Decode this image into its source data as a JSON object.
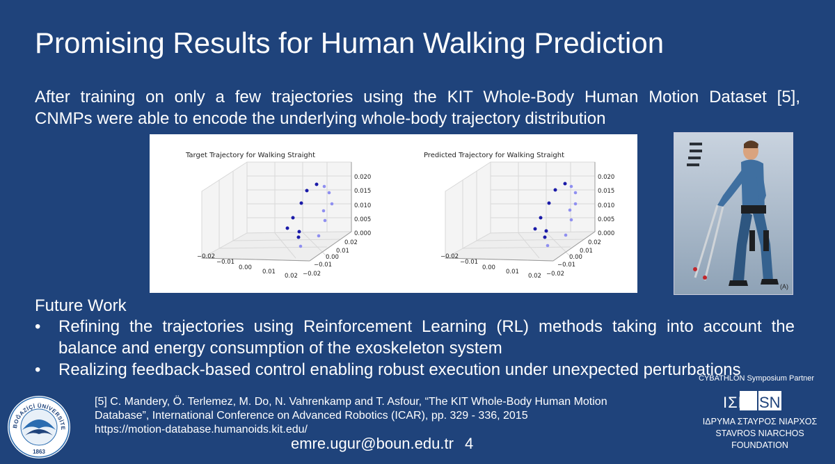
{
  "slide": {
    "title": "Promising Results for Human Walking Prediction",
    "intro_line1": "After training on only a few trajectories using the KIT Whole-Body Human Motion Dataset [5],",
    "intro_line2": "CNMPs were able to encode the underlying whole-body trajectory distribution",
    "future_work_title": "Future Work",
    "bullets": [
      "Refining the trajectories using Reinforcement Learning (RL) methods taking into account the balance and energy consumption of the exoskeleton system",
      "Realizing feedback-based control enabling robust execution under unexpected perturbations"
    ],
    "bullet_glyph": "•",
    "reference_lines": [
      "[5] C. Mandery, Ö. Terlemez, M. Do, N. Vahrenkamp and T. Asfour, “The KIT Whole-Body Human Motion",
      "Database”, International Conference on Advanced Robotics (ICAR), pp. 329 - 336, 2015",
      "https://motion-database.humanoids.kit.edu/"
    ],
    "footer_email": "emre.ugur@boun.edu.tr",
    "page_number": "4",
    "partner_caption": "CYBATHLON Symposium Partner",
    "snf_mark_left": "ΙΣΝ",
    "snf_mark_right": "SNF",
    "snf_greek": "ΙΔΡΥΜΑ ΣΤΑΥΡΟΣ ΝΙΑΡΧΟΣ",
    "snf_english_1": "STAVROS NIARCHOS",
    "snf_english_2": "FOUNDATION",
    "image_label": "(A)",
    "university_logo_text": "BOĞAZİÇİ ÜNİVERSİTESİ",
    "university_logo_year": "1863",
    "background_color": "#1f437b"
  },
  "plots": [
    {
      "title": "Target Trajectory for Walking Straight",
      "x_ticks": [
        "−0.02",
        "−0.01",
        "0.00",
        "0.01",
        "0.02"
      ],
      "y_ticks": [
        "0.02",
        "0.01",
        "0.00",
        "−0.01",
        "−0.02"
      ],
      "z_ticks": [
        "0.020",
        "0.015",
        "0.010",
        "0.005",
        "0.000"
      ]
    },
    {
      "title": "Predicted Trajectory for Walking Straight",
      "x_ticks": [
        "−0.02",
        "−0.01",
        "0.00",
        "0.01",
        "0.02"
      ],
      "y_ticks": [
        "0.02",
        "0.01",
        "0.00",
        "−0.01",
        "−0.02"
      ],
      "z_ticks": [
        "0.020",
        "0.015",
        "0.010",
        "0.005",
        "0.000"
      ]
    }
  ]
}
